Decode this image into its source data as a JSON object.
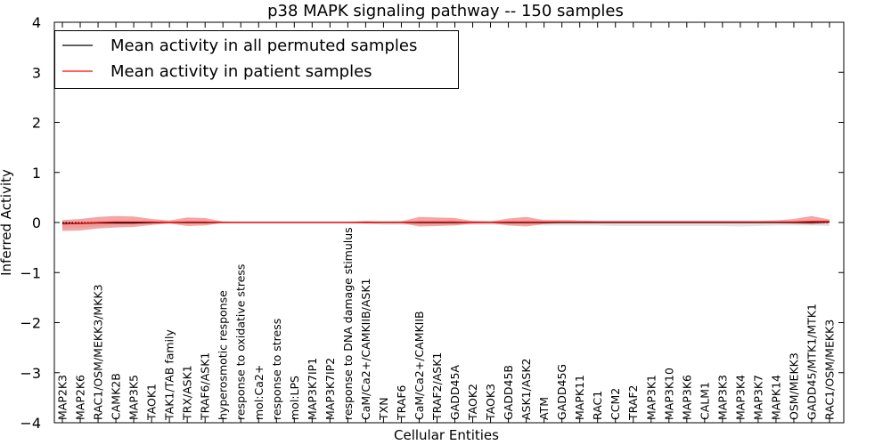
{
  "chart_data": {
    "type": "line",
    "title": "p38 MAPK signaling pathway -- 150 samples",
    "xlabel": "Cellular Entities",
    "ylabel": "Inferred Activity",
    "ylim": [
      -4,
      4
    ],
    "yticks": [
      4,
      3,
      2,
      1,
      0,
      -1,
      -2,
      -3,
      -4
    ],
    "ytick_labels": [
      "4",
      "3",
      "2",
      "1",
      "0",
      "−1",
      "−2",
      "−3",
      "−4"
    ],
    "grid": false,
    "legend_position": "top-left",
    "categories": [
      "MAP2K3",
      "MAP2K6",
      "RAC1/OSM/MEKK3/MKK3",
      "CAMK2B",
      "MAP3K5",
      "TAOK1",
      "TAK1/TAB family",
      "TRX/ASK1",
      "TRAF6/ASK1",
      "hyperosmotic response",
      "response to oxidative stress",
      "mol:Ca2+",
      "response to stress",
      "mol:LPS",
      "MAP3K7IP1",
      "MAP3K7IP2",
      "response to DNA damage stimulus",
      "CaM/Ca2+/CAMKIIB/ASK1",
      "TXN",
      "TRAF6",
      "CaM/Ca2+/CAMKIIB",
      "TRAF2/ASK1",
      "GADD45A",
      "TAOK2",
      "TAOK3",
      "GADD45B",
      "ASK1/ASK2",
      "ATM",
      "GADD45G",
      "MAPK11",
      "RAC1",
      "CCM2",
      "TRAF2",
      "MAP3K1",
      "MAP3K10",
      "MAP3K6",
      "CALM1",
      "MAP3K3",
      "MAP3K4",
      "MAP3K7",
      "MAPK14",
      "OSM/MEKK3",
      "GADD45/MTK1/MTK1",
      "RAC1/OSM/MEKK3"
    ],
    "series": [
      {
        "name": "Mean activity in all permuted samples",
        "color": "#000000",
        "values": [
          -0.02,
          -0.02,
          -0.01,
          -0.01,
          -0.01,
          0,
          0,
          0,
          0,
          0,
          0,
          0,
          0,
          0,
          0,
          0,
          0,
          0,
          0,
          0,
          0,
          0,
          0,
          0,
          0,
          0,
          0,
          0,
          0,
          0,
          0,
          0,
          0,
          0,
          0,
          0,
          0,
          0,
          0,
          0,
          0,
          0,
          0,
          0.01
        ],
        "band_lower": [
          -0.12,
          -0.1,
          -0.08,
          -0.06,
          -0.05,
          -0.03,
          -0.02,
          -0.01,
          -0.01,
          -0.01,
          -0.01,
          -0.01,
          -0.01,
          -0.01,
          -0.01,
          -0.01,
          -0.01,
          -0.02,
          -0.05,
          -0.05,
          -0.05,
          -0.05,
          -0.05,
          -0.05,
          -0.05,
          -0.05,
          -0.05,
          -0.06,
          -0.06,
          -0.06,
          -0.06,
          -0.07,
          -0.07,
          -0.07,
          -0.07,
          -0.07,
          -0.07,
          -0.07,
          -0.08,
          -0.07,
          -0.06,
          -0.06,
          -0.06,
          -0.07
        ],
        "band_upper": [
          0.03,
          0.03,
          0.03,
          0.03,
          0.03,
          0.03,
          0.02,
          0.02,
          0.02,
          0.02,
          0.02,
          0.02,
          0.02,
          0.02,
          0.02,
          0.02,
          0.02,
          0.02,
          0.03,
          0.04,
          0.04,
          0.04,
          0.04,
          0.04,
          0.04,
          0.04,
          0.04,
          0.04,
          0.04,
          0.04,
          0.04,
          0.04,
          0.04,
          0.04,
          0.04,
          0.04,
          0.04,
          0.04,
          0.04,
          0.04,
          0.04,
          0.04,
          0.04,
          0.05
        ]
      },
      {
        "name": "Mean activity in patient samples",
        "color": "#ff0000",
        "band_color": "#f08080",
        "values": [
          -0.03,
          -0.02,
          0,
          0.01,
          0.01,
          0.01,
          0,
          0.01,
          0.01,
          0,
          0,
          0,
          0,
          0,
          0,
          0,
          0,
          0,
          0,
          0,
          0.01,
          0.01,
          0.01,
          0,
          0,
          0.01,
          0.01,
          0.01,
          0.01,
          0.01,
          0.01,
          0.01,
          0.01,
          0.01,
          0.01,
          0.01,
          0.01,
          0.01,
          0.01,
          0.01,
          0.01,
          0.01,
          0.02,
          0.02
        ],
        "band_lower": [
          -0.17,
          -0.16,
          -0.12,
          -0.1,
          -0.09,
          -0.05,
          -0.02,
          -0.07,
          -0.06,
          -0.01,
          0,
          0,
          0,
          0,
          0,
          0,
          0,
          -0.02,
          -0.01,
          -0.01,
          -0.08,
          -0.07,
          -0.06,
          -0.02,
          -0.01,
          -0.06,
          -0.08,
          -0.03,
          -0.01,
          -0.01,
          -0.01,
          -0.01,
          -0.01,
          -0.01,
          -0.01,
          -0.01,
          -0.01,
          -0.01,
          -0.01,
          -0.01,
          -0.01,
          -0.02,
          -0.04,
          -0.02
        ],
        "band_upper": [
          0.05,
          0.07,
          0.11,
          0.13,
          0.12,
          0.07,
          0.04,
          0.1,
          0.09,
          0.02,
          0.01,
          0.01,
          0.01,
          0.01,
          0.01,
          0.01,
          0.01,
          0.03,
          0.02,
          0.02,
          0.11,
          0.1,
          0.09,
          0.03,
          0.02,
          0.08,
          0.11,
          0.05,
          0.05,
          0.04,
          0.03,
          0.03,
          0.03,
          0.03,
          0.03,
          0.03,
          0.03,
          0.03,
          0.03,
          0.03,
          0.04,
          0.07,
          0.13,
          0.06
        ]
      }
    ]
  }
}
